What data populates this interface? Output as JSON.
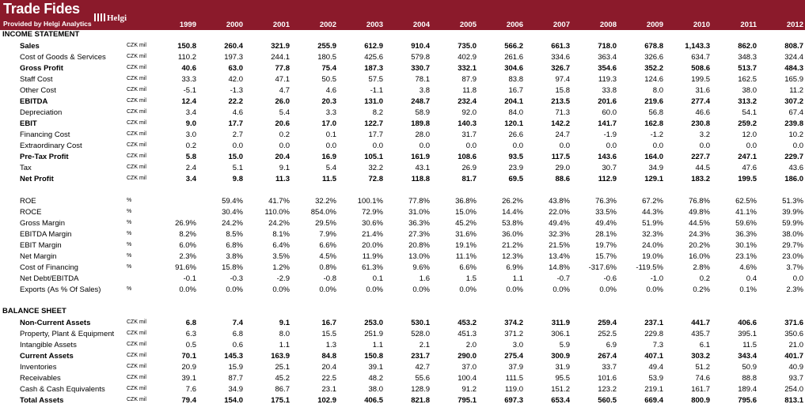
{
  "header": {
    "title": "Trade Fides",
    "subtitle": "Provided by Helgi Analytics",
    "logo_text": "Helgi",
    "years": [
      "1999",
      "2000",
      "2001",
      "2002",
      "2003",
      "2004",
      "2005",
      "2006",
      "2007",
      "2008",
      "2009",
      "2010",
      "2011",
      "2012"
    ]
  },
  "income_statement": {
    "title": "INCOME STATEMENT",
    "rows": [
      {
        "label": "Sales",
        "unit": "CZK mil",
        "bold": true,
        "values": [
          "150.8",
          "260.4",
          "321.9",
          "255.9",
          "612.9",
          "910.4",
          "735.0",
          "566.2",
          "661.3",
          "718.0",
          "678.8",
          "1,143.3",
          "862.0",
          "808.7"
        ]
      },
      {
        "label": "Cost of Goods & Services",
        "unit": "CZK mil",
        "bold": false,
        "values": [
          "110.2",
          "197.3",
          "244.1",
          "180.5",
          "425.6",
          "579.8",
          "402.9",
          "261.6",
          "334.6",
          "363.4",
          "326.6",
          "634.7",
          "348.3",
          "324.4"
        ]
      },
      {
        "label": "Gross Profit",
        "unit": "CZK mil",
        "bold": true,
        "values": [
          "40.6",
          "63.0",
          "77.8",
          "75.4",
          "187.3",
          "330.7",
          "332.1",
          "304.6",
          "326.7",
          "354.6",
          "352.2",
          "508.6",
          "513.7",
          "484.3"
        ]
      },
      {
        "label": "Staff Cost",
        "unit": "CZK mil",
        "bold": false,
        "values": [
          "33.3",
          "42.0",
          "47.1",
          "50.5",
          "57.5",
          "78.1",
          "87.9",
          "83.8",
          "97.4",
          "119.3",
          "124.6",
          "199.5",
          "162.5",
          "165.9"
        ]
      },
      {
        "label": "Other Cost",
        "unit": "CZK mil",
        "bold": false,
        "values": [
          "-5.1",
          "-1.3",
          "4.7",
          "4.6",
          "-1.1",
          "3.8",
          "11.8",
          "16.7",
          "15.8",
          "33.8",
          "8.0",
          "31.6",
          "38.0",
          "11.2"
        ]
      },
      {
        "label": "EBITDA",
        "unit": "CZK mil",
        "bold": true,
        "values": [
          "12.4",
          "22.2",
          "26.0",
          "20.3",
          "131.0",
          "248.7",
          "232.4",
          "204.1",
          "213.5",
          "201.6",
          "219.6",
          "277.4",
          "313.2",
          "307.2"
        ]
      },
      {
        "label": "Depreciation",
        "unit": "CZK mil",
        "bold": false,
        "values": [
          "3.4",
          "4.6",
          "5.4",
          "3.3",
          "8.2",
          "58.9",
          "92.0",
          "84.0",
          "71.3",
          "60.0",
          "56.8",
          "46.6",
          "54.1",
          "67.4"
        ]
      },
      {
        "label": "EBIT",
        "unit": "CZK mil",
        "bold": true,
        "values": [
          "9.0",
          "17.7",
          "20.6",
          "17.0",
          "122.7",
          "189.8",
          "140.3",
          "120.1",
          "142.2",
          "141.7",
          "162.8",
          "230.8",
          "259.2",
          "239.8"
        ]
      },
      {
        "label": "Financing Cost",
        "unit": "CZK mil",
        "bold": false,
        "values": [
          "3.0",
          "2.7",
          "0.2",
          "0.1",
          "17.7",
          "28.0",
          "31.7",
          "26.6",
          "24.7",
          "-1.9",
          "-1.2",
          "3.2",
          "12.0",
          "10.2"
        ]
      },
      {
        "label": "Extraordinary Cost",
        "unit": "CZK mil",
        "bold": false,
        "values": [
          "0.2",
          "0.0",
          "0.0",
          "0.0",
          "0.0",
          "0.0",
          "0.0",
          "0.0",
          "0.0",
          "0.0",
          "0.0",
          "0.0",
          "0.0",
          "0.0"
        ]
      },
      {
        "label": "Pre-Tax Profit",
        "unit": "CZK mil",
        "bold": true,
        "values": [
          "5.8",
          "15.0",
          "20.4",
          "16.9",
          "105.1",
          "161.9",
          "108.6",
          "93.5",
          "117.5",
          "143.6",
          "164.0",
          "227.7",
          "247.1",
          "229.7"
        ]
      },
      {
        "label": "Tax",
        "unit": "CZK mil",
        "bold": false,
        "values": [
          "2.4",
          "5.1",
          "9.1",
          "5.4",
          "32.2",
          "43.1",
          "26.9",
          "23.9",
          "29.0",
          "30.7",
          "34.9",
          "44.5",
          "47.6",
          "43.6"
        ]
      },
      {
        "label": "Net Profit",
        "unit": "CZK mil",
        "bold": true,
        "values": [
          "3.4",
          "9.8",
          "11.3",
          "11.5",
          "72.8",
          "118.8",
          "81.7",
          "69.5",
          "88.6",
          "112.9",
          "129.1",
          "183.2",
          "199.5",
          "186.0"
        ]
      }
    ]
  },
  "ratios": {
    "rows": [
      {
        "label": "ROE",
        "unit": "%",
        "bold": false,
        "values": [
          "",
          "59.4%",
          "41.7%",
          "32.2%",
          "100.1%",
          "77.8%",
          "36.8%",
          "26.2%",
          "43.8%",
          "76.3%",
          "67.2%",
          "76.8%",
          "62.5%",
          "51.3%"
        ]
      },
      {
        "label": "ROCE",
        "unit": "%",
        "bold": false,
        "values": [
          "",
          "30.4%",
          "110.0%",
          "854.0%",
          "72.9%",
          "31.0%",
          "15.0%",
          "14.4%",
          "22.0%",
          "33.5%",
          "44.3%",
          "49.8%",
          "41.1%",
          "39.9%"
        ]
      },
      {
        "label": "Gross Margin",
        "unit": "%",
        "bold": false,
        "values": [
          "26.9%",
          "24.2%",
          "24.2%",
          "29.5%",
          "30.6%",
          "36.3%",
          "45.2%",
          "53.8%",
          "49.4%",
          "49.4%",
          "51.9%",
          "44.5%",
          "59.6%",
          "59.9%"
        ]
      },
      {
        "label": "EBITDA Margin",
        "unit": "%",
        "bold": false,
        "values": [
          "8.2%",
          "8.5%",
          "8.1%",
          "7.9%",
          "21.4%",
          "27.3%",
          "31.6%",
          "36.0%",
          "32.3%",
          "28.1%",
          "32.3%",
          "24.3%",
          "36.3%",
          "38.0%"
        ]
      },
      {
        "label": "EBIT Margin",
        "unit": "%",
        "bold": false,
        "values": [
          "6.0%",
          "6.8%",
          "6.4%",
          "6.6%",
          "20.0%",
          "20.8%",
          "19.1%",
          "21.2%",
          "21.5%",
          "19.7%",
          "24.0%",
          "20.2%",
          "30.1%",
          "29.7%"
        ]
      },
      {
        "label": "Net Margin",
        "unit": "%",
        "bold": false,
        "values": [
          "2.3%",
          "3.8%",
          "3.5%",
          "4.5%",
          "11.9%",
          "13.0%",
          "11.1%",
          "12.3%",
          "13.4%",
          "15.7%",
          "19.0%",
          "16.0%",
          "23.1%",
          "23.0%"
        ]
      },
      {
        "label": "Cost of Financing",
        "unit": "%",
        "bold": false,
        "values": [
          "91.6%",
          "15.8%",
          "1.2%",
          "0.8%",
          "61.3%",
          "9.6%",
          "6.6%",
          "6.9%",
          "14.8%",
          "-317.6%",
          "-119.5%",
          "2.8%",
          "4.6%",
          "3.7%"
        ]
      },
      {
        "label": "Net Debt/EBITDA",
        "unit": "",
        "bold": false,
        "values": [
          "-0.1",
          "-0.3",
          "-2.9",
          "-0.8",
          "0.1",
          "1.6",
          "1.5",
          "1.1",
          "-0.7",
          "-0.6",
          "-1.0",
          "0.2",
          "0.4",
          "0.0"
        ]
      },
      {
        "label": "Exports (As % Of Sales)",
        "unit": "%",
        "bold": false,
        "values": [
          "0.0%",
          "0.0%",
          "0.0%",
          "0.0%",
          "0.0%",
          "0.0%",
          "0.0%",
          "0.0%",
          "0.0%",
          "0.0%",
          "0.0%",
          "0.2%",
          "0.1%",
          "2.3%"
        ]
      }
    ]
  },
  "balance_sheet": {
    "title": "BALANCE SHEET",
    "rows": [
      {
        "label": "Non-Current Assets",
        "unit": "CZK mil",
        "bold": true,
        "values": [
          "6.8",
          "7.4",
          "9.1",
          "16.7",
          "253.0",
          "530.1",
          "453.2",
          "374.2",
          "311.9",
          "259.4",
          "237.1",
          "441.7",
          "406.6",
          "371.6"
        ]
      },
      {
        "label": "Property, Plant & Equipment",
        "unit": "CZK mil",
        "bold": false,
        "values": [
          "6.3",
          "6.8",
          "8.0",
          "15.5",
          "251.9",
          "528.0",
          "451.3",
          "371.2",
          "306.1",
          "252.5",
          "229.8",
          "435.7",
          "395.1",
          "350.6"
        ]
      },
      {
        "label": "Intangible Assets",
        "unit": "CZK mil",
        "bold": false,
        "values": [
          "0.5",
          "0.6",
          "1.1",
          "1.3",
          "1.1",
          "2.1",
          "2.0",
          "3.0",
          "5.9",
          "6.9",
          "7.3",
          "6.1",
          "11.5",
          "21.0"
        ]
      },
      {
        "label": "Current Assets",
        "unit": "CZK mil",
        "bold": true,
        "values": [
          "70.1",
          "145.3",
          "163.9",
          "84.8",
          "150.8",
          "231.7",
          "290.0",
          "275.4",
          "300.9",
          "267.4",
          "407.1",
          "303.2",
          "343.4",
          "401.7"
        ]
      },
      {
        "label": "Inventories",
        "unit": "CZK mil",
        "bold": false,
        "values": [
          "20.9",
          "15.9",
          "25.1",
          "20.4",
          "39.1",
          "42.7",
          "37.0",
          "37.9",
          "31.9",
          "33.7",
          "49.4",
          "51.2",
          "50.9",
          "40.9"
        ]
      },
      {
        "label": "Receivables",
        "unit": "CZK mil",
        "bold": false,
        "values": [
          "39.1",
          "87.7",
          "45.2",
          "22.5",
          "48.2",
          "55.6",
          "100.4",
          "111.5",
          "95.5",
          "101.6",
          "53.9",
          "74.6",
          "88.8",
          "93.7"
        ]
      },
      {
        "label": "Cash & Cash Equivalents",
        "unit": "CZK mil",
        "bold": false,
        "values": [
          "7.6",
          "34.9",
          "86.7",
          "23.1",
          "38.0",
          "128.9",
          "91.2",
          "119.0",
          "151.2",
          "123.2",
          "219.1",
          "161.7",
          "189.4",
          "254.0"
        ]
      },
      {
        "label": "Total Assets",
        "unit": "CZK mil",
        "bold": true,
        "values": [
          "79.4",
          "154.0",
          "175.1",
          "102.9",
          "406.5",
          "821.8",
          "795.1",
          "697.3",
          "653.4",
          "560.5",
          "669.4",
          "800.9",
          "795.6",
          "813.1"
        ]
      }
    ]
  }
}
